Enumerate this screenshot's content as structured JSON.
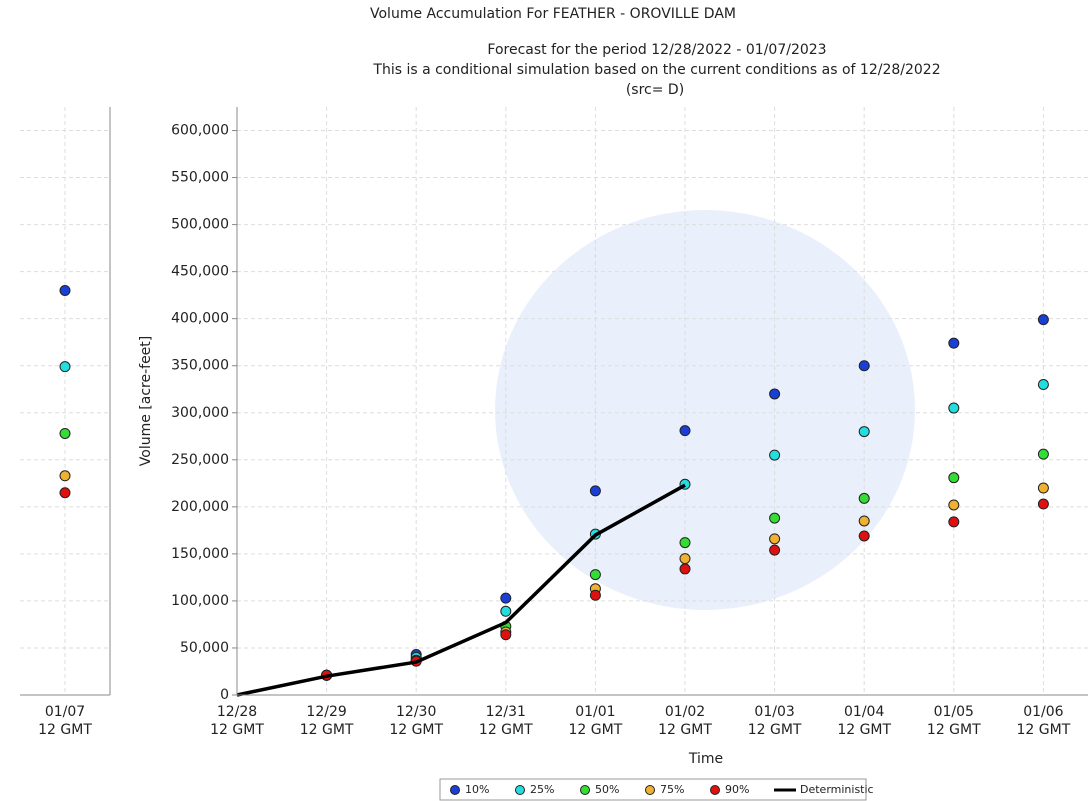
{
  "chart_data": {
    "type": "scatter",
    "title": "Volume Accumulation For FEATHER - OROVILLE DAM",
    "subtitle": "Forecast for the period 12/28/2022 - 01/07/2023",
    "note": "This is a conditional simulation based on the current conditions as of 12/28/2022",
    "source": "(src= D)",
    "x_label": "Time",
    "y_label": "Volume [acre-feet]",
    "categories": [
      "12/28 12 GMT",
      "12/29 12 GMT",
      "12/30 12 GMT",
      "12/31 12 GMT",
      "01/01 12 GMT",
      "01/02 12 GMT",
      "01/03 12 GMT",
      "01/04 12 GMT",
      "01/05 12 GMT",
      "01/06 12 GMT",
      "01/07 12 GMT"
    ],
    "ylim": [
      0,
      625000
    ],
    "yticks": [
      0,
      {
        "value": 50000,
        "label": "50,000"
      },
      {
        "value": 100000,
        "label": "100,000"
      },
      {
        "value": 150000,
        "label": "150,000"
      },
      {
        "value": 200000,
        "label": "200,000"
      },
      {
        "value": 250000,
        "label": "250,000"
      },
      {
        "value": 300000,
        "label": "300,000"
      },
      {
        "value": 350000,
        "label": "350,000"
      },
      {
        "value": 400000,
        "label": "400,000"
      },
      {
        "value": 450000,
        "label": "450,000"
      },
      {
        "value": 500000,
        "label": "500,000"
      },
      {
        "value": 550000,
        "label": "550,000"
      },
      {
        "value": 600000,
        "label": "600,000"
      }
    ],
    "grid": true,
    "legend": "bottom",
    "series": [
      {
        "name": "10%",
        "color": "#1a3fd6",
        "values": [
          null,
          21000,
          43000,
          103000,
          217000,
          281000,
          320000,
          350000,
          374000,
          399000,
          430000
        ]
      },
      {
        "name": "25%",
        "color": "#22dede",
        "values": [
          null,
          21000,
          40000,
          89000,
          171000,
          224000,
          255000,
          280000,
          305000,
          330000,
          349000
        ]
      },
      {
        "name": "50%",
        "color": "#33dd33",
        "values": [
          null,
          21000,
          36000,
          73000,
          128000,
          162000,
          188000,
          209000,
          231000,
          256000,
          278000
        ]
      },
      {
        "name": "75%",
        "color": "#f0b030",
        "values": [
          null,
          21000,
          37000,
          67000,
          113000,
          145000,
          166000,
          185000,
          202000,
          220000,
          233000
        ]
      },
      {
        "name": "90%",
        "color": "#e01010",
        "values": [
          null,
          21000,
          36000,
          64000,
          106000,
          134000,
          154000,
          169000,
          184000,
          203000,
          215000
        ]
      },
      {
        "name": "Deterministic",
        "type": "line",
        "color": "#000000",
        "values": [
          0,
          20000,
          35000,
          77000,
          170000,
          223000,
          null,
          null,
          null,
          null,
          null
        ]
      }
    ]
  }
}
